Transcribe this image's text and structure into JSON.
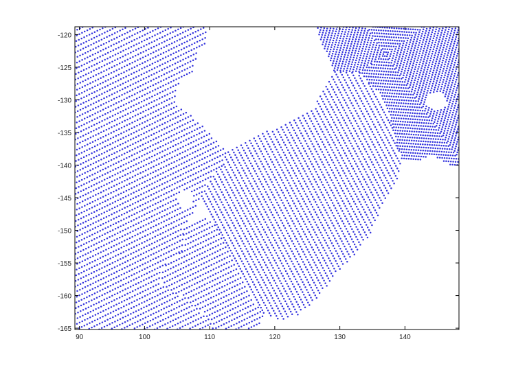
{
  "chart_data": {
    "type": "scatter",
    "title": "",
    "xlabel": "",
    "ylabel": "",
    "xlim": [
      89.3,
      148.3
    ],
    "ylim": [
      -165.2,
      -118.8
    ],
    "x_ticks": [
      90,
      100,
      110,
      120,
      130,
      140
    ],
    "x_tick_labels": [
      "90",
      "100",
      "110",
      "120",
      "130",
      "140"
    ],
    "y_ticks": [
      -120,
      -125,
      -130,
      -135,
      -140,
      -145,
      -150,
      -155,
      -160,
      -165
    ],
    "y_tick_labels": [
      "-120",
      "-125",
      "-130",
      "-135",
      "-140",
      "-145",
      "-150",
      "-155",
      "-160",
      "-165"
    ],
    "grid": false,
    "legend": "none",
    "marker_color": "#3333dd",
    "series": [
      {
        "marker": "dot",
        "point_spacing": 0.45,
        "regions": [
          {
            "pattern": "diagonal-left",
            "angle_deg": 26,
            "row_spacing": 0.75,
            "polygon": [
              [
                89.3,
                -118.8
              ],
              [
                109.5,
                -118.8
              ],
              [
                109.5,
                -121.5
              ],
              [
                108.0,
                -123.0
              ],
              [
                107.5,
                -126.0
              ],
              [
                105.5,
                -127.0
              ],
              [
                104.5,
                -130.0
              ],
              [
                106.0,
                -131.5
              ],
              [
                108.5,
                -133.5
              ],
              [
                111.0,
                -136.0
              ],
              [
                112.5,
                -138.0
              ],
              [
                112.0,
                -140.0
              ],
              [
                110.0,
                -142.0
              ],
              [
                108.5,
                -145.0
              ],
              [
                107.5,
                -147.5
              ],
              [
                106.0,
                -149.5
              ],
              [
                106.0,
                -153.0
              ],
              [
                104.0,
                -154.5
              ],
              [
                102.5,
                -156.0
              ],
              [
                102.5,
                -158.0
              ],
              [
                104.5,
                -159.5
              ],
              [
                106.5,
                -160.5
              ],
              [
                108.0,
                -162.0
              ],
              [
                110.0,
                -163.5
              ],
              [
                111.0,
                -165.2
              ],
              [
                89.3,
                -165.2
              ]
            ],
            "holes": [
              [
                [
                  105.5,
                  -144.0
                ],
                [
                  107.0,
                  -143.5
                ],
                [
                  107.5,
                  -146.0
                ],
                [
                  106.0,
                  -147.0
                ],
                [
                  105.0,
                  -145.5
                ]
              ]
            ]
          },
          {
            "pattern": "diagonal-right",
            "angle_deg": -62,
            "row_spacing": 0.75,
            "polygon": [
              [
                112.5,
                -138.0
              ],
              [
                116.0,
                -136.0
              ],
              [
                119.5,
                -134.5
              ],
              [
                123.0,
                -133.0
              ],
              [
                126.0,
                -131.5
              ],
              [
                127.5,
                -128.0
              ],
              [
                129.0,
                -125.5
              ],
              [
                133.0,
                -126.0
              ],
              [
                136.0,
                -129.0
              ],
              [
                137.5,
                -132.0
              ],
              [
                138.5,
                -136.0
              ],
              [
                139.5,
                -139.0
              ],
              [
                139.0,
                -142.0
              ],
              [
                136.5,
                -146.0
              ],
              [
                135.0,
                -150.0
              ],
              [
                133.0,
                -153.0
              ],
              [
                130.5,
                -155.5
              ],
              [
                128.0,
                -158.5
              ],
              [
                126.0,
                -161.0
              ],
              [
                123.5,
                -163.0
              ],
              [
                121.0,
                -164.0
              ],
              [
                118.5,
                -163.0
              ],
              [
                116.5,
                -160.5
              ],
              [
                115.0,
                -157.0
              ],
              [
                113.5,
                -154.0
              ],
              [
                112.0,
                -151.0
              ],
              [
                110.0,
                -148.0
              ],
              [
                108.5,
                -145.0
              ],
              [
                110.0,
                -142.0
              ],
              [
                112.0,
                -140.0
              ]
            ],
            "holes": []
          },
          {
            "pattern": "diagonal-left",
            "angle_deg": 26,
            "row_spacing": 0.75,
            "polygon": [
              [
                106.0,
                -149.5
              ],
              [
                110.0,
                -148.0
              ],
              [
                112.0,
                -151.0
              ],
              [
                113.5,
                -154.0
              ],
              [
                115.0,
                -157.0
              ],
              [
                116.5,
                -160.5
              ],
              [
                118.5,
                -163.0
              ],
              [
                117.0,
                -165.2
              ],
              [
                111.0,
                -165.2
              ],
              [
                110.0,
                -163.5
              ],
              [
                108.0,
                -162.0
              ],
              [
                106.5,
                -160.5
              ],
              [
                104.5,
                -159.5
              ],
              [
                102.5,
                -158.0
              ],
              [
                102.5,
                -156.0
              ],
              [
                104.0,
                -154.5
              ],
              [
                106.0,
                -153.0
              ]
            ],
            "holes": []
          },
          {
            "pattern": "concentric",
            "angle_deg": 35,
            "row_spacing": 0.75,
            "polygon": [
              [
                126.5,
                -118.8
              ],
              [
                148.3,
                -118.8
              ],
              [
                148.3,
                -140.5
              ],
              [
                146.0,
                -139.5
              ],
              [
                144.0,
                -138.5
              ],
              [
                142.0,
                -139.5
              ],
              [
                139.5,
                -139.0
              ],
              [
                138.5,
                -136.0
              ],
              [
                137.5,
                -132.0
              ],
              [
                136.0,
                -129.0
              ],
              [
                133.0,
                -126.0
              ],
              [
                129.0,
                -125.5
              ],
              [
                128.0,
                -123.0
              ],
              [
                127.0,
                -121.0
              ]
            ],
            "holes": [
              [
                [
                  143.5,
                  -129.0
                ],
                [
                  146.0,
                  -129.0
                ],
                [
                  146.5,
                  -131.0
                ],
                [
                  144.5,
                  -131.5
                ],
                [
                  143.0,
                  -130.5
                ]
              ]
            ]
          }
        ]
      }
    ]
  }
}
